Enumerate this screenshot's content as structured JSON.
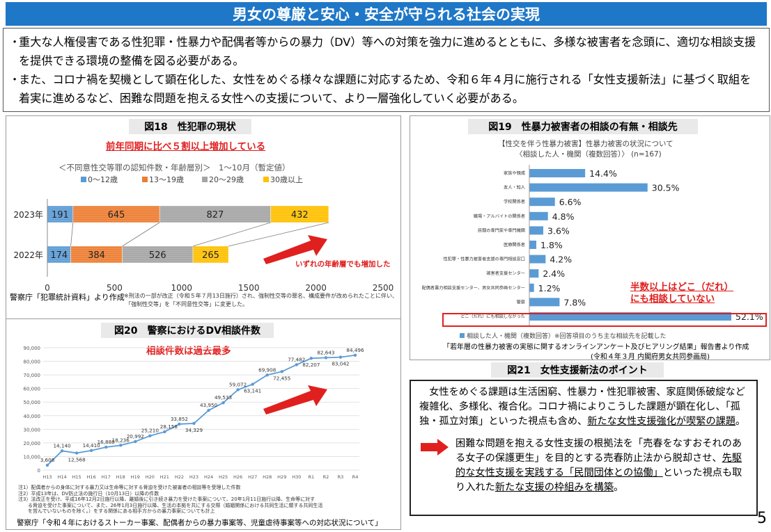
{
  "title": "男女の尊厳と安心・安全が守られる社会の実現",
  "intro": {
    "bullet1": "重大な人権侵害である性犯罪・性暴力や配偶者等からの暴力（DV）等への対策を強力に進めるとともに、多様な被害者を念頭に、適切な相談支援を提供できる環境の整備を図る必要がある。",
    "bullet2": "また、コロナ禍を契機として顕在化した、女性をめぐる様々な課題に対応するため、令和６年４月に施行される「女性支援新法」に基づく取組を着実に進めるなど、困難な問題を抱える女性への支援について、より一層強化していく必要がある。"
  },
  "fig18": {
    "title": "図18　性犯罪の現状",
    "headline": "前年同期に比べ５割以上増加している",
    "subtitle": "＜不同意性交等罪の認知件数・年齢層別＞　1～10月（暫定値）",
    "arrow_note": "いずれの年齢層でも増加した",
    "source": "警察庁「犯罪統計資料」より作成",
    "footnote1": "※刑法の一部が改正（令和５年７月13日施行）され、強制性交等の罪名、構成要件が改められたことに伴い、",
    "footnote2": "「強制性交等」を「不同意性交等」に変更した。"
  },
  "fig19": {
    "title": "図19　性暴力被害者の相談の有無・相談先",
    "subtitle1": "【性交を伴う性暴力被害】性暴力被害の状況について",
    "subtitle2": "〈相談した人・機関（複数回答）〉 (n=167)",
    "callout1": "半数以上はどこ（だれ）",
    "callout2": "にも相談していない",
    "legend": "相談した人・機関（複数回答）※回答項目のうち主な相談先を記載した",
    "source1": "「若年層の性暴力被害の実態に関するオンラインアンケート及びヒアリング結果」報告書より作成",
    "source2": "(令和４年３月 内閣府男女共同参画局)"
  },
  "fig20": {
    "title": "図20　警察におけるDV相談件数",
    "headline": "相談件数は過去最多",
    "notes": [
      "注1）配偶者からの身体に対する暴力又は生命等に対する脅迫を受けた被害者の相談等を受理した件数",
      "注2）平成13年は、DV防止法の施行日（10月13日）以降の件数",
      "注3）法改正を受け、平成16年12月2日施行以降、離婚後に引き続き暴力を受けた事案について、20年1月11日施行以降、生命等に対す",
      "　　る脅迫を受けた事案について、また、26年1月3日施行以降、生活の本拠を共にする交際（婚姻関係における共同生活に類する共同生活",
      "　　を営んでいないものを除く。）をする関係にある相手方からの暴力事案についても計上"
    ],
    "source": "警察庁「令和４年におけるストーカー事案、配偶者からの暴力事案等、児童虐待事案等への対応状況について」"
  },
  "fig21": {
    "title": "図21　女性支援新法のポイント",
    "p1_a": "　女性をめぐる課題は生活困窮、性暴力・性犯罪被害、家庭関係破綻など複雑化、多様化、複合化。コロナ禍によりこうした課題が顕在化し、「孤独・孤立対策」といった視点も含め、",
    "p1_u": "新たな女性支援強化が喫緊の課題",
    "p1_end": "。",
    "p2_a": "困難な問題を抱える女性支援の根拠法を「売春をなすおそれのある女子の保護更生」を目的とする売春防止法から脱却させ、",
    "p2_u1": "先駆的な女性支援を実践する「民間団体との協働」",
    "p2_b": "といった視点も取り入れた",
    "p2_u2": "新たな支援の枠組みを構築",
    "p2_end": "。"
  },
  "page_number": "5",
  "chart_data": [
    {
      "type": "bar",
      "stacked": true,
      "orientation": "horizontal",
      "categories": [
        "2023年",
        "2022年"
      ],
      "series": [
        {
          "name": "0～12歳",
          "values": [
            191,
            174
          ],
          "color": "#5b9bd5"
        },
        {
          "name": "13～19歳",
          "values": [
            645,
            384
          ],
          "color": "#ed7d31"
        },
        {
          "name": "20～29歳",
          "values": [
            827,
            526
          ],
          "color": "#a5a5a5"
        },
        {
          "name": "30歳以上",
          "values": [
            432,
            265
          ],
          "color": "#ffc000"
        }
      ],
      "xlim": [
        0,
        2500
      ],
      "xticks": [
        0,
        500,
        1000,
        1500,
        2000,
        2500
      ],
      "legend": "top"
    },
    {
      "type": "bar",
      "orientation": "horizontal",
      "categories": [
        "家族や親戚",
        "友人・知人",
        "学校関係者",
        "職場・アルバイトの関係者",
        "民間の専門家や専門機関",
        "医療関係者",
        "性犯罪・性暴力被害者支援の専門相談窓口",
        "被害者支援センター",
        "配偶者暴力相談支援センター、男女共同参画センター",
        "警察",
        "どこ（だれ）にも相談しなかった"
      ],
      "values": [
        14.4,
        30.5,
        6.6,
        4.8,
        3.6,
        1.8,
        4.2,
        2.4,
        1.2,
        7.8,
        52.1
      ],
      "labels": [
        "14.4%",
        "30.5%",
        "6.6%",
        "4.8%",
        "3.6%",
        "1.8%",
        "4.2%",
        "2.4%",
        "1.2%",
        "7.8%",
        "52.1%"
      ],
      "color": "#5b9bd5",
      "unit": "%"
    },
    {
      "type": "line",
      "x": [
        "H13",
        "H14",
        "H15",
        "H16",
        "H17",
        "H18",
        "H19",
        "H20",
        "H21",
        "H22",
        "H23",
        "H24",
        "H25",
        "H26",
        "H27",
        "H28",
        "H29",
        "H30",
        "R1",
        "R2",
        "R3",
        "R4"
      ],
      "values": [
        3608,
        14140,
        12568,
        14410,
        16888,
        18236,
        20992,
        25210,
        28158,
        33852,
        34329,
        43950,
        49533,
        59072,
        63141,
        69908,
        72455,
        77482,
        82207,
        82643,
        83042,
        84496
      ],
      "labels": [
        "3,608",
        "14,140",
        "12,568",
        "14,410",
        "16,888",
        "18,236",
        "20,992",
        "25,210",
        "28,158",
        "33,852",
        "34,329",
        "43,950",
        "49,533",
        "59,072",
        "63,141",
        "69,908",
        "72,455",
        "77,482",
        "82,207",
        "82,643",
        "83,042",
        "84,496"
      ],
      "ylim": [
        0,
        90000
      ],
      "yticks": [
        "0",
        "10,000",
        "20,000",
        "30,000",
        "40,000",
        "50,000",
        "60,000",
        "70,000",
        "80,000",
        "90,000"
      ],
      "color": "#5b9bd5",
      "grid": true
    }
  ]
}
